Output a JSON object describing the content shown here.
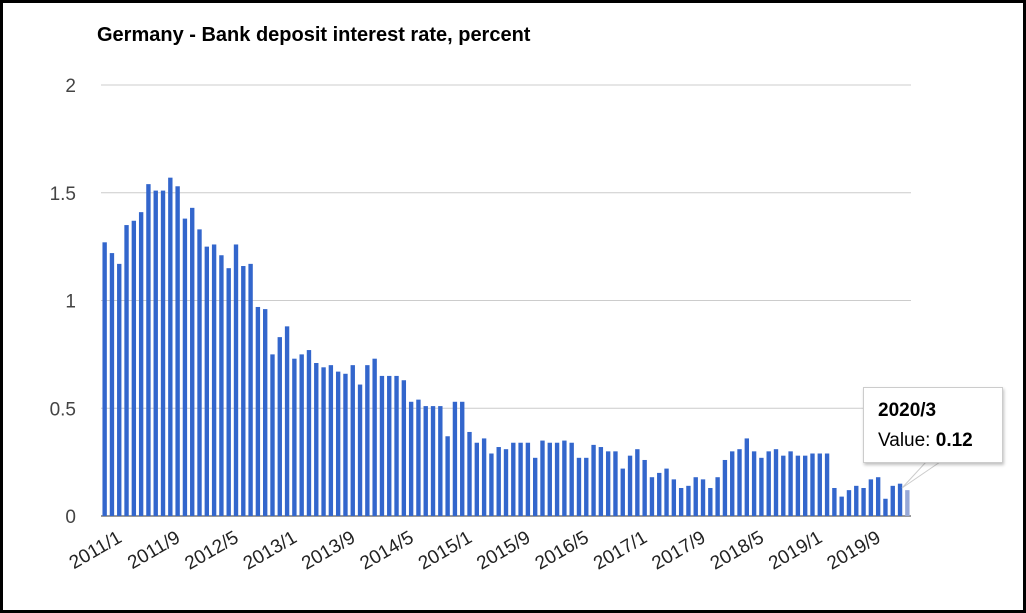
{
  "chart_data": {
    "type": "bar",
    "title": "Germany - Bank deposit interest rate, percent",
    "xlabel": "",
    "ylabel": "",
    "ylim": [
      0,
      2
    ],
    "yticks": [
      "0",
      "0.5",
      "1",
      "1.5",
      "2"
    ],
    "grid": true,
    "legend": "none",
    "color": "#3366cc",
    "highlight_color": "#97a8d6",
    "categories": [
      "2011/1",
      "2011/2",
      "2011/3",
      "2011/4",
      "2011/5",
      "2011/6",
      "2011/7",
      "2011/8",
      "2011/9",
      "2011/10",
      "2011/11",
      "2011/12",
      "2012/1",
      "2012/2",
      "2012/3",
      "2012/4",
      "2012/5",
      "2012/6",
      "2012/7",
      "2012/8",
      "2012/9",
      "2012/10",
      "2012/11",
      "2012/12",
      "2013/1",
      "2013/2",
      "2013/3",
      "2013/4",
      "2013/5",
      "2013/6",
      "2013/7",
      "2013/8",
      "2013/9",
      "2013/10",
      "2013/11",
      "2013/12",
      "2014/1",
      "2014/2",
      "2014/3",
      "2014/4",
      "2014/5",
      "2014/6",
      "2014/7",
      "2014/8",
      "2014/9",
      "2014/10",
      "2014/11",
      "2014/12",
      "2015/1",
      "2015/2",
      "2015/3",
      "2015/4",
      "2015/5",
      "2015/6",
      "2015/7",
      "2015/8",
      "2015/9",
      "2015/10",
      "2015/11",
      "2015/12",
      "2016/1",
      "2016/2",
      "2016/3",
      "2016/4",
      "2016/5",
      "2016/6",
      "2016/7",
      "2016/8",
      "2016/9",
      "2016/10",
      "2016/11",
      "2016/12",
      "2017/1",
      "2017/2",
      "2017/3",
      "2017/4",
      "2017/5",
      "2017/6",
      "2017/7",
      "2017/8",
      "2017/9",
      "2017/10",
      "2017/11",
      "2017/12",
      "2018/1",
      "2018/2",
      "2018/3",
      "2018/4",
      "2018/5",
      "2018/6",
      "2018/7",
      "2018/8",
      "2018/9",
      "2018/10",
      "2018/11",
      "2018/12",
      "2019/1",
      "2019/2",
      "2019/3",
      "2019/4",
      "2019/5",
      "2019/6",
      "2019/7",
      "2019/8",
      "2019/9",
      "2019/10",
      "2019/11",
      "2019/12",
      "2020/1",
      "2020/2",
      "2020/3"
    ],
    "values": [
      1.27,
      1.22,
      1.17,
      1.35,
      1.37,
      1.41,
      1.54,
      1.51,
      1.51,
      1.57,
      1.53,
      1.38,
      1.43,
      1.33,
      1.25,
      1.26,
      1.21,
      1.15,
      1.26,
      1.16,
      1.17,
      0.97,
      0.96,
      0.75,
      0.83,
      0.88,
      0.73,
      0.75,
      0.77,
      0.71,
      0.69,
      0.7,
      0.67,
      0.66,
      0.7,
      0.61,
      0.7,
      0.73,
      0.65,
      0.65,
      0.65,
      0.63,
      0.53,
      0.54,
      0.51,
      0.51,
      0.51,
      0.37,
      0.53,
      0.53,
      0.39,
      0.34,
      0.36,
      0.29,
      0.32,
      0.31,
      0.34,
      0.34,
      0.34,
      0.27,
      0.35,
      0.34,
      0.34,
      0.35,
      0.34,
      0.27,
      0.27,
      0.33,
      0.32,
      0.3,
      0.3,
      0.22,
      0.28,
      0.31,
      0.26,
      0.18,
      0.2,
      0.22,
      0.17,
      0.13,
      0.14,
      0.18,
      0.17,
      0.13,
      0.18,
      0.26,
      0.3,
      0.31,
      0.36,
      0.3,
      0.27,
      0.3,
      0.31,
      0.28,
      0.3,
      0.28,
      0.28,
      0.29,
      0.29,
      0.29,
      0.13,
      0.09,
      0.12,
      0.14,
      0.13,
      0.17,
      0.18,
      0.08,
      0.14,
      0.15,
      0.12
    ],
    "xtick_labels": [
      "2011/1",
      "2011/9",
      "2012/5",
      "2013/1",
      "2013/9",
      "2014/5",
      "2015/1",
      "2015/9",
      "2016/5",
      "2017/1",
      "2017/9",
      "2018/5",
      "2019/1",
      "2019/9"
    ],
    "tooltip": {
      "category": "2020/3",
      "value_label": "Value:",
      "value": "0.12"
    }
  }
}
